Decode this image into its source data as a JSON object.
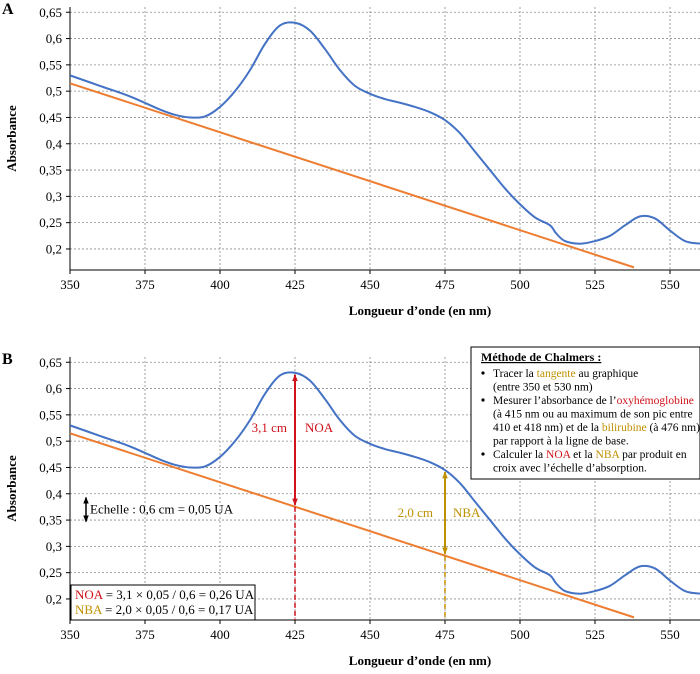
{
  "chart_data": [
    {
      "type": "line",
      "panel_label": "A",
      "xlabel": "Longueur d’onde (en nm)",
      "ylabel": "Absorbance",
      "xlim": [
        350,
        560
      ],
      "ylim": [
        0.16,
        0.66
      ],
      "x_ticks": [
        350,
        375,
        400,
        425,
        450,
        475,
        500,
        525,
        550
      ],
      "y_ticks": [
        0.2,
        0.25,
        0.3,
        0.35,
        0.4,
        0.45,
        0.5,
        0.55,
        0.6,
        0.65
      ],
      "x_tick_labels": [
        "350",
        "375",
        "400",
        "425",
        "450",
        "475",
        "500",
        "525",
        "550"
      ],
      "y_tick_labels": [
        "0,2",
        "0,25",
        "0,3",
        "0,35",
        "0,4",
        "0,45",
        "0,5",
        "0,55",
        "0,6",
        "0,65"
      ],
      "grid": true,
      "series": [
        {
          "color": "#4472c4",
          "x": [
            350,
            360,
            370,
            380,
            385,
            390,
            395,
            400,
            405,
            410,
            415,
            420,
            425,
            430,
            435,
            440,
            445,
            450,
            455,
            460,
            465,
            470,
            475,
            480,
            485,
            490,
            495,
            500,
            505,
            510,
            512,
            515,
            520,
            525,
            530,
            535,
            540,
            545,
            550,
            555,
            560
          ],
          "y": [
            0.53,
            0.51,
            0.49,
            0.465,
            0.455,
            0.45,
            0.452,
            0.47,
            0.5,
            0.54,
            0.59,
            0.625,
            0.63,
            0.615,
            0.58,
            0.54,
            0.51,
            0.495,
            0.485,
            0.478,
            0.47,
            0.46,
            0.445,
            0.42,
            0.385,
            0.35,
            0.315,
            0.285,
            0.26,
            0.245,
            0.23,
            0.215,
            0.21,
            0.215,
            0.225,
            0.245,
            0.262,
            0.258,
            0.235,
            0.215,
            0.21
          ]
        },
        {
          "color": "#ed7d31",
          "x": [
            350,
            538
          ],
          "y": [
            0.515,
            0.165
          ]
        }
      ]
    },
    {
      "type": "line",
      "panel_label": "B",
      "xlabel": "Longueur d’onde (en nm)",
      "ylabel": "Absorbance",
      "xlim": [
        350,
        560
      ],
      "ylim": [
        0.16,
        0.66
      ],
      "x_ticks": [
        350,
        375,
        400,
        425,
        450,
        475,
        500,
        525,
        550
      ],
      "y_ticks": [
        0.2,
        0.25,
        0.3,
        0.35,
        0.4,
        0.45,
        0.5,
        0.55,
        0.6,
        0.65
      ],
      "x_tick_labels": [
        "350",
        "375",
        "400",
        "425",
        "450",
        "475",
        "500",
        "525",
        "550"
      ],
      "y_tick_labels": [
        "0,2",
        "0,25",
        "0,3",
        "0,35",
        "0,4",
        "0,45",
        "0,5",
        "0,55",
        "0,6",
        "0,65"
      ],
      "grid": true,
      "series": [
        {
          "color": "#4472c4",
          "x": [
            350,
            360,
            370,
            380,
            385,
            390,
            395,
            400,
            405,
            410,
            415,
            420,
            425,
            430,
            435,
            440,
            445,
            450,
            455,
            460,
            465,
            470,
            475,
            480,
            485,
            490,
            495,
            500,
            505,
            510,
            512,
            515,
            520,
            525,
            530,
            535,
            540,
            545,
            550,
            555,
            560
          ],
          "y": [
            0.53,
            0.51,
            0.49,
            0.465,
            0.455,
            0.45,
            0.452,
            0.47,
            0.5,
            0.54,
            0.59,
            0.625,
            0.63,
            0.615,
            0.58,
            0.54,
            0.51,
            0.495,
            0.485,
            0.478,
            0.47,
            0.46,
            0.445,
            0.42,
            0.385,
            0.35,
            0.315,
            0.285,
            0.26,
            0.245,
            0.23,
            0.215,
            0.21,
            0.215,
            0.225,
            0.245,
            0.262,
            0.258,
            0.235,
            0.215,
            0.21
          ]
        },
        {
          "color": "#ed7d31",
          "x": [
            350,
            538
          ],
          "y": [
            0.515,
            0.165
          ]
        }
      ],
      "annotations": {
        "noa": {
          "x": 425,
          "y_top": 0.63,
          "y_base": 0.375,
          "length_label": "3,1 cm",
          "label": "NOA",
          "color": "#d0121b"
        },
        "nba": {
          "x": 475,
          "y_top": 0.445,
          "y_base": 0.282,
          "length_label": "2,0 cm",
          "label": "NBA",
          "color": "#bf9000"
        },
        "scale": {
          "text": "Echelle : 0,6 cm = 0,05 UA",
          "y_top": 0.395,
          "y_bottom": 0.345,
          "x": 354
        },
        "method_box": {
          "title": "Méthode de Chalmers :",
          "items": [
            [
              {
                "t": "Tracer la "
              },
              {
                "t": "tangente",
                "c": "#bf9000"
              },
              {
                "t": " au graphique"
              },
              {
                "br": true
              },
              {
                "t": "(entre 350 et 530 nm)"
              }
            ],
            [
              {
                "t": "Mesurer l’absorbance de l’"
              },
              {
                "t": "oxyhémoglobine",
                "c": "#d0121b"
              },
              {
                "br": true
              },
              {
                "t": "(à 415 nm ou au maximum de son pic entre"
              },
              {
                "br": true
              },
              {
                "t": "410 et 418 nm) et de la "
              },
              {
                "t": "bilirubine",
                "c": "#bf9000"
              },
              {
                "t": " (à 476 nm)"
              },
              {
                "br": true
              },
              {
                "t": "par rapport à la ligne de base."
              }
            ],
            [
              {
                "t": "Calculer la "
              },
              {
                "t": "NOA",
                "c": "#d0121b"
              },
              {
                "t": " et la "
              },
              {
                "t": "NBA",
                "c": "#bf9000"
              },
              {
                "t": " par produit en"
              },
              {
                "br": true
              },
              {
                "t": "croix avec l’échelle d’absorption."
              }
            ]
          ]
        },
        "results_box": [
          {
            "label": "NOA",
            "text": " = 3,1 × 0,05 / 0,6 = 0,26 UA",
            "color": "#d0121b"
          },
          {
            "label": "NBA",
            "text": " = 2,0 × 0,05 / 0,6 = 0,17 UA",
            "color": "#bf9000"
          }
        ]
      }
    }
  ]
}
